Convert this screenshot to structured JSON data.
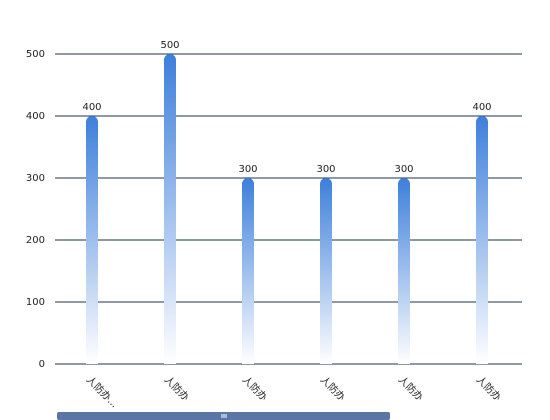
{
  "chart_data": {
    "type": "bar",
    "categories": [
      "人防办...",
      "人防办",
      "人防办",
      "人防办",
      "人防办",
      "人防办"
    ],
    "values": [
      400,
      500,
      300,
      300,
      300,
      400
    ],
    "color": "#3d7fdb",
    "ylim": [
      0,
      500
    ],
    "yticks": [
      0,
      100,
      200,
      300,
      400,
      500
    ],
    "grid": true
  }
}
